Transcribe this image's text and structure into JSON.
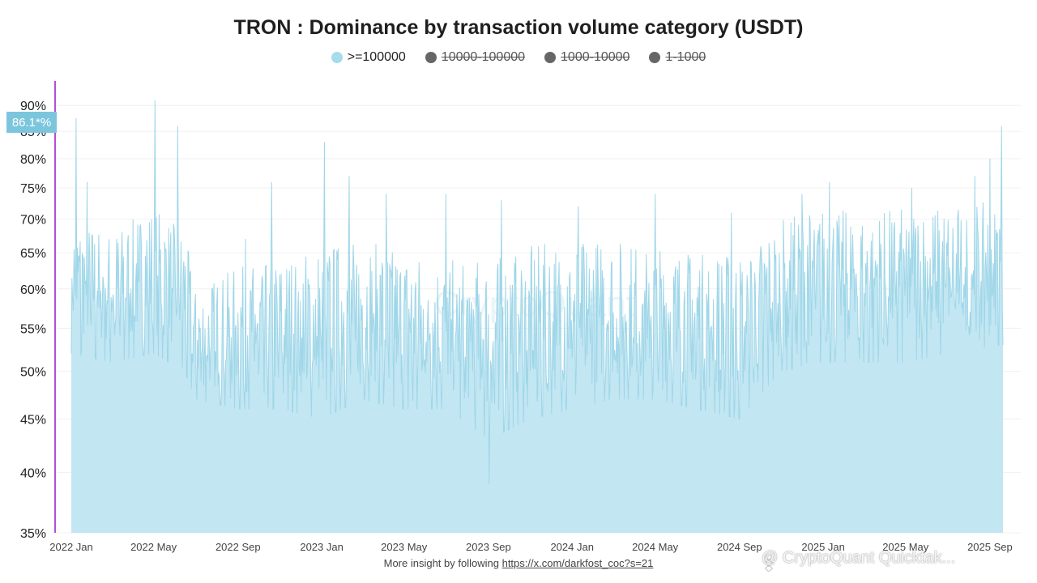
{
  "title": "TRON : Dominance by transaction volume category (USDT)",
  "legend": [
    {
      "label": ">=100000",
      "color": "#a7dcec",
      "active": true
    },
    {
      "label": "10000-100000",
      "color": "#666666",
      "active": false
    },
    {
      "label": "1000-10000",
      "color": "#666666",
      "active": false
    },
    {
      "label": "1-1000",
      "color": "#666666",
      "active": false
    }
  ],
  "crosshair_label": "86.1*%",
  "watermark": "CryptoQuant",
  "footer": {
    "text": "More insight by following",
    "link": "https://x.com/darkfost_coc?s=21"
  },
  "brand_overlay": "@ CryptoQuant Quicktak...",
  "colors": {
    "area": "#c2e6f2",
    "line": "#9fd6e8",
    "crosshair": "#b44fd6"
  },
  "chart_data": {
    "type": "area",
    "title": "TRON : Dominance by transaction volume category (USDT)",
    "y_scale": "log",
    "ylim": [
      35,
      95
    ],
    "y_ticks": [
      "35%",
      "40%",
      "45%",
      "50%",
      "55%",
      "60%",
      "65%",
      "70%",
      "75%",
      "80%",
      "85%",
      "90%"
    ],
    "x_ticks": [
      "2022 Jan",
      "2022 May",
      "2022 Sep",
      "2023 Jan",
      "2023 May",
      "2023 Sep",
      "2024 Jan",
      "2024 May",
      "2024 Sep",
      "2025 Jan",
      "2025 May",
      "2025 Sep"
    ],
    "x_range": [
      "2022-01-01",
      "2025-09-20"
    ],
    "grid": true,
    "series": [
      {
        "name": ">=100000",
        "resolution": "daily",
        "anchors": [
          {
            "date": "2022-01-01",
            "low": 52,
            "high": 70
          },
          {
            "date": "2022-03-01",
            "low": 51,
            "high": 68
          },
          {
            "date": "2022-05-01",
            "low": 52,
            "high": 72
          },
          {
            "date": "2022-06-15",
            "low": 50,
            "high": 68
          },
          {
            "date": "2022-07-01",
            "low": 47,
            "high": 60
          },
          {
            "date": "2022-09-01",
            "low": 46,
            "high": 63
          },
          {
            "date": "2022-11-01",
            "low": 46,
            "high": 64
          },
          {
            "date": "2023-01-01",
            "low": 45,
            "high": 66
          },
          {
            "date": "2023-03-01",
            "low": 47,
            "high": 67
          },
          {
            "date": "2023-05-01",
            "low": 46,
            "high": 65
          },
          {
            "date": "2023-07-01",
            "low": 46,
            "high": 64
          },
          {
            "date": "2023-09-01",
            "low": 43,
            "high": 64
          },
          {
            "date": "2023-11-01",
            "low": 45,
            "high": 66
          },
          {
            "date": "2024-01-01",
            "low": 46,
            "high": 67
          },
          {
            "date": "2024-03-01",
            "low": 47,
            "high": 67
          },
          {
            "date": "2024-05-01",
            "low": 47,
            "high": 66
          },
          {
            "date": "2024-07-01",
            "low": 46,
            "high": 65
          },
          {
            "date": "2024-09-01",
            "low": 45,
            "high": 65
          },
          {
            "date": "2024-11-01",
            "low": 50,
            "high": 70
          },
          {
            "date": "2025-01-01",
            "low": 51,
            "high": 72
          },
          {
            "date": "2025-03-01",
            "low": 51,
            "high": 71
          },
          {
            "date": "2025-05-01",
            "low": 51,
            "high": 72
          },
          {
            "date": "2025-07-01",
            "low": 52,
            "high": 72
          },
          {
            "date": "2025-09-20",
            "low": 53,
            "high": 73
          }
        ],
        "spikes": [
          {
            "date": "2022-01-08",
            "value": 87.5
          },
          {
            "date": "2022-01-24",
            "value": 76
          },
          {
            "date": "2022-05-03",
            "value": 91
          },
          {
            "date": "2022-06-05",
            "value": 86
          },
          {
            "date": "2022-09-12",
            "value": 67
          },
          {
            "date": "2022-10-20",
            "value": 76
          },
          {
            "date": "2023-01-05",
            "value": 83
          },
          {
            "date": "2023-02-10",
            "value": 77
          },
          {
            "date": "2023-04-05",
            "value": 74
          },
          {
            "date": "2023-07-01",
            "value": 74
          },
          {
            "date": "2023-09-02",
            "value": 39
          },
          {
            "date": "2023-09-20",
            "value": 73
          },
          {
            "date": "2024-01-10",
            "value": 72
          },
          {
            "date": "2024-05-01",
            "value": 74
          },
          {
            "date": "2024-08-20",
            "value": 71
          },
          {
            "date": "2024-12-01",
            "value": 74
          },
          {
            "date": "2025-01-10",
            "value": 76
          },
          {
            "date": "2025-05-10",
            "value": 75
          },
          {
            "date": "2025-08-10",
            "value": 77
          },
          {
            "date": "2025-09-01",
            "value": 80
          },
          {
            "date": "2025-09-18",
            "value": 86
          }
        ]
      }
    ]
  }
}
